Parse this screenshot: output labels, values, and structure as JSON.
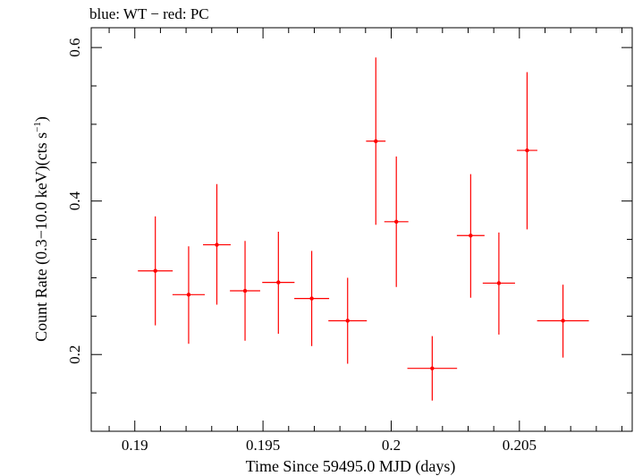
{
  "chart_data": {
    "type": "scatter",
    "title": "blue: WT − red: PC",
    "xlabel": "Time Since 59495.0 MJD (days)",
    "ylabel_main": "Count Rate (0.3−10.0 keV)(cts s",
    "ylabel_sup": "−1",
    "ylabel_end": ")",
    "xlim": [
      0.1883,
      0.2094
    ],
    "ylim": [
      0.1,
      0.6258
    ],
    "xticks": [
      0.19,
      0.195,
      0.2,
      0.205
    ],
    "xtick_labels": [
      "0.19",
      "0.195",
      "0.2",
      "0.205"
    ],
    "yticks": [
      0.2,
      0.4,
      0.6
    ],
    "ytick_labels": [
      "0.2",
      "0.4",
      "0.6"
    ],
    "grid": false,
    "series": [
      {
        "color": "#ff0000",
        "points": [
          {
            "x": 0.1908,
            "xerr": 0.00068,
            "y": 0.309,
            "yerr_low": 0.071,
            "yerr_high": 0.071
          },
          {
            "x": 0.1921,
            "xerr": 0.00063,
            "y": 0.278,
            "yerr_low": 0.064,
            "yerr_high": 0.063
          },
          {
            "x": 0.1932,
            "xerr": 0.00054,
            "y": 0.343,
            "yerr_low": 0.078,
            "yerr_high": 0.079
          },
          {
            "x": 0.1943,
            "xerr": 0.00059,
            "y": 0.283,
            "yerr_low": 0.065,
            "yerr_high": 0.065
          },
          {
            "x": 0.1956,
            "xerr": 0.00063,
            "y": 0.294,
            "yerr_low": 0.067,
            "yerr_high": 0.066
          },
          {
            "x": 0.1969,
            "xerr": 0.00068,
            "y": 0.273,
            "yerr_low": 0.062,
            "yerr_high": 0.062
          },
          {
            "x": 0.1983,
            "xerr": 0.00075,
            "y": 0.244,
            "yerr_low": 0.056,
            "yerr_high": 0.056
          },
          {
            "x": 0.1994,
            "xerr": 0.00038,
            "y": 0.478,
            "yerr_low": 0.109,
            "yerr_high": 0.109
          },
          {
            "x": 0.2002,
            "xerr": 0.00047,
            "y": 0.373,
            "yerr_low": 0.085,
            "yerr_high": 0.085
          },
          {
            "x": 0.2016,
            "xerr": 0.00097,
            "y": 0.182,
            "yerr_low": 0.042,
            "yerr_high": 0.042
          },
          {
            "x": 0.2031,
            "xerr": 0.00054,
            "y": 0.355,
            "yerr_low": 0.081,
            "yerr_high": 0.08
          },
          {
            "x": 0.2042,
            "xerr": 0.00063,
            "y": 0.293,
            "yerr_low": 0.067,
            "yerr_high": 0.066
          },
          {
            "x": 0.2053,
            "xerr": 0.0004,
            "y": 0.466,
            "yerr_low": 0.103,
            "yerr_high": 0.102
          },
          {
            "x": 0.2067,
            "xerr": 0.00101,
            "y": 0.244,
            "yerr_low": 0.048,
            "yerr_high": 0.047
          }
        ]
      }
    ]
  }
}
